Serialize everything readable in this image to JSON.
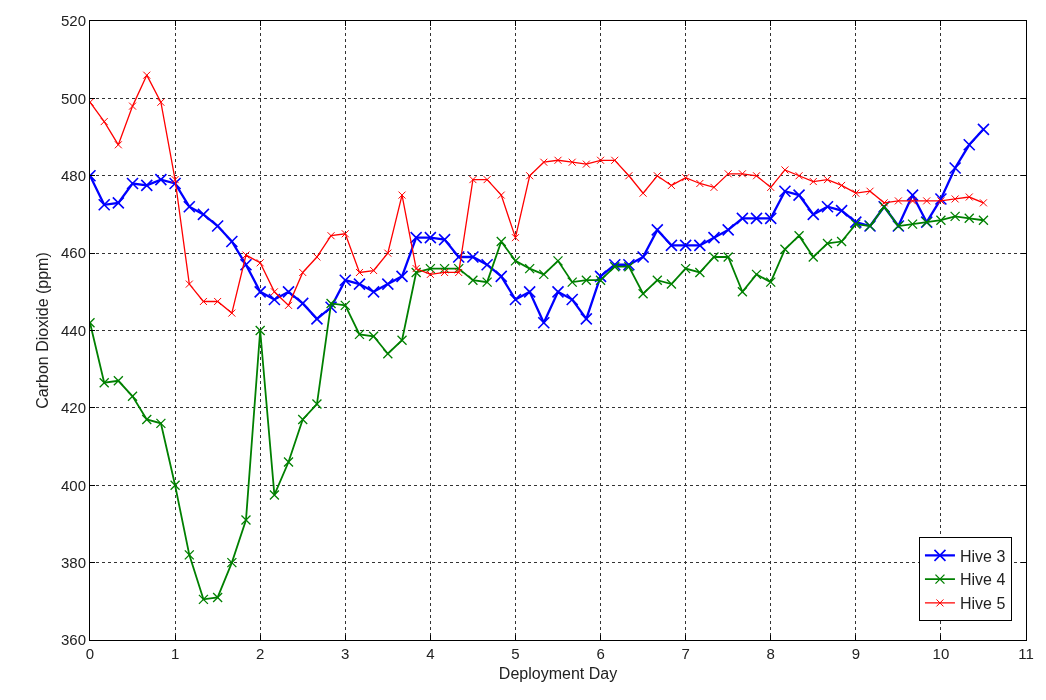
{
  "chart_data": {
    "type": "line",
    "xlabel": "Deployment Day",
    "ylabel": "Carbon Dioxide (ppm)",
    "x": [
      0,
      0.167,
      0.333,
      0.5,
      0.667,
      0.833,
      1,
      1.167,
      1.333,
      1.5,
      1.667,
      1.833,
      2,
      2.167,
      2.333,
      2.5,
      2.667,
      2.833,
      3,
      3.167,
      3.333,
      3.5,
      3.667,
      3.833,
      4,
      4.167,
      4.333,
      4.5,
      4.667,
      4.833,
      5,
      5.167,
      5.333,
      5.5,
      5.667,
      5.833,
      6,
      6.167,
      6.333,
      6.5,
      6.667,
      6.833,
      7,
      7.167,
      7.333,
      7.5,
      7.667,
      7.833,
      8,
      8.167,
      8.333,
      8.5,
      8.667,
      8.833,
      9,
      9.167,
      9.333,
      9.5,
      9.667,
      9.833,
      10,
      10.167,
      10.333,
      10.5
    ],
    "series": [
      {
        "name": "Hive 3",
        "color": "#0000ff",
        "values": [
          480,
          472.5,
          473,
          478,
          477.5,
          479,
          478,
          472,
          470,
          467,
          463,
          457,
          450,
          448,
          450,
          447,
          443,
          446,
          453,
          452,
          450,
          452,
          454,
          464,
          464,
          463.5,
          459,
          459,
          457,
          454,
          448,
          450,
          442,
          450,
          448,
          443,
          454,
          457,
          457,
          459,
          466,
          462,
          462,
          462,
          464,
          466,
          469,
          469,
          469,
          476,
          475,
          470,
          472,
          471,
          468,
          467,
          472,
          467,
          475,
          468,
          474,
          482,
          488,
          492
        ]
      },
      {
        "name": "Hive 4",
        "color": "#008000",
        "values": [
          442,
          426.5,
          427,
          423,
          417,
          416,
          400,
          382,
          370.5,
          371,
          380,
          391,
          440,
          397.5,
          406,
          417,
          421,
          447,
          446.5,
          439,
          438.5,
          434,
          437.5,
          455,
          456,
          456,
          456,
          453,
          452.5,
          463,
          458,
          456,
          454.5,
          458,
          452.5,
          453,
          453,
          456.5,
          456.5,
          449.5,
          453,
          452,
          456,
          455,
          459,
          459,
          450,
          454.5,
          452.5,
          461,
          464.5,
          459,
          462.5,
          463,
          467.5,
          467,
          472,
          467,
          467.5,
          468,
          468.5,
          469.5,
          469,
          468.5
        ]
      },
      {
        "name": "Hive 5",
        "color": "#ff0000",
        "values": [
          499,
          494,
          488,
          498,
          506,
          499,
          479,
          452,
          447.5,
          447.5,
          444.5,
          459.5,
          457.5,
          450,
          446.5,
          455,
          459,
          464.5,
          465,
          455,
          455.5,
          460,
          475,
          456,
          454.5,
          455,
          455,
          479,
          479,
          475,
          464,
          480,
          483.5,
          484,
          483.5,
          483,
          484,
          484,
          480,
          475.5,
          480,
          477.5,
          479.5,
          478,
          477,
          480.5,
          480.5,
          480,
          477,
          481.5,
          480,
          478.5,
          479,
          477.5,
          475.5,
          476,
          473,
          473.5,
          473.5,
          473.5,
          473.5,
          474,
          474.5,
          473
        ]
      }
    ],
    "xlim": [
      0,
      11
    ],
    "xticks": [
      0,
      1,
      2,
      3,
      4,
      5,
      6,
      7,
      8,
      9,
      10,
      11
    ],
    "ylim": [
      360,
      520
    ],
    "yticks": [
      360,
      380,
      400,
      420,
      440,
      460,
      480,
      500,
      520
    ],
    "grid": true,
    "legend": "bottom right",
    "marker": "cross",
    "line_style": "solid"
  }
}
